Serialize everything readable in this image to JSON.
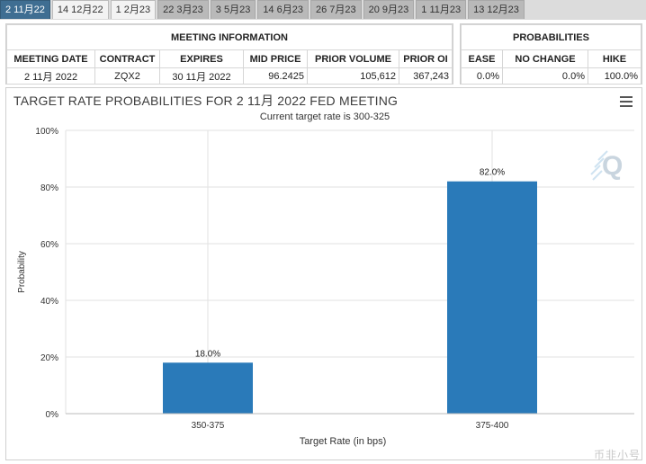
{
  "tabs": [
    {
      "label": "2 11月22",
      "state": "active"
    },
    {
      "label": "14 12月22",
      "state": "next"
    },
    {
      "label": "1 2月23",
      "state": "next"
    },
    {
      "label": "22 3月23",
      "state": "normal"
    },
    {
      "label": "3 5月23",
      "state": "normal"
    },
    {
      "label": "14 6月23",
      "state": "normal"
    },
    {
      "label": "26 7月23",
      "state": "normal"
    },
    {
      "label": "20 9月23",
      "state": "normal"
    },
    {
      "label": "1 11月23",
      "state": "normal"
    },
    {
      "label": "13 12月23",
      "state": "normal"
    }
  ],
  "meeting_info": {
    "header": "MEETING INFORMATION",
    "columns": [
      "MEETING DATE",
      "CONTRACT",
      "EXPIRES",
      "MID PRICE",
      "PRIOR VOLUME",
      "PRIOR OI"
    ],
    "values": [
      "2 11月 2022",
      "ZQX2",
      "30 11月 2022",
      "96.2425",
      "105,612",
      "367,243"
    ]
  },
  "probabilities": {
    "header": "PROBABILITIES",
    "columns": [
      "EASE",
      "NO CHANGE",
      "HIKE"
    ],
    "values": [
      "0.0%",
      "0.0%",
      "100.0%"
    ]
  },
  "colors": {
    "bar": "#2a7ab9",
    "active_tab": "#3f6e92",
    "grid": "#e2e2e2"
  },
  "chart_data": {
    "type": "bar",
    "title": "TARGET RATE PROBABILITIES FOR 2 11月 2022 FED MEETING",
    "subtitle": "Current target rate is 300-325",
    "xlabel": "Target Rate (in bps)",
    "ylabel": "Probability",
    "categories": [
      "350-375",
      "375-400"
    ],
    "values": [
      18.0,
      82.0
    ],
    "data_labels": [
      "18.0%",
      "82.0%"
    ],
    "ylim": [
      0,
      100
    ],
    "yticks": [
      0,
      20,
      40,
      60,
      80,
      100
    ],
    "ytick_labels": [
      "0%",
      "20%",
      "40%",
      "60%",
      "80%",
      "100%"
    ],
    "grid": true,
    "legend": "none"
  },
  "watermark": "币非小号"
}
